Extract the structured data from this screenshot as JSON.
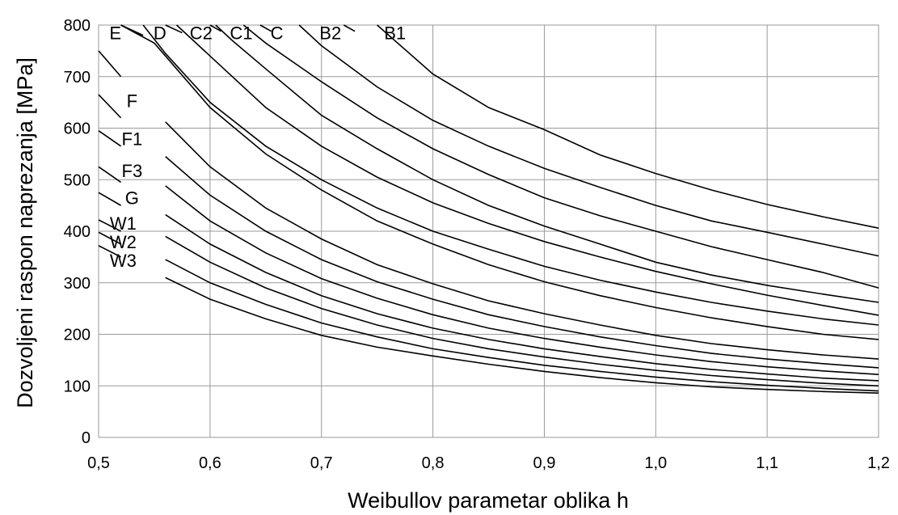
{
  "chart_data": {
    "type": "line",
    "title": "",
    "xlabel": "Weibullov parametar oblika h",
    "ylabel": "Dozvoljeni raspon naprezanja  [MPa]",
    "xlim": [
      0.5,
      1.2
    ],
    "ylim": [
      0,
      800
    ],
    "grid": true,
    "legend": "labels placed at left end of curves",
    "x_ticks": [
      {
        "value": 0.5,
        "label": "0,5"
      },
      {
        "value": 0.6,
        "label": "0,6"
      },
      {
        "value": 0.7,
        "label": "0,7"
      },
      {
        "value": 0.8,
        "label": "0,8"
      },
      {
        "value": 0.9,
        "label": "0,9"
      },
      {
        "value": 1.0,
        "label": "1,0"
      },
      {
        "value": 1.1,
        "label": "1,1"
      },
      {
        "value": 1.2,
        "label": "1,2"
      }
    ],
    "y_ticks": [
      {
        "value": 0,
        "label": "0"
      },
      {
        "value": 100,
        "label": "100"
      },
      {
        "value": 200,
        "label": "200"
      },
      {
        "value": 300,
        "label": "300"
      },
      {
        "value": 400,
        "label": "400"
      },
      {
        "value": 500,
        "label": "500"
      },
      {
        "value": 600,
        "label": "600"
      },
      {
        "value": 700,
        "label": "700"
      },
      {
        "value": 800,
        "label": "800"
      }
    ],
    "series": [
      {
        "name": "B1",
        "label_at": [
          0.766,
          782
        ],
        "x": [
          0.75,
          0.8,
          0.85,
          0.9,
          0.95,
          1.0,
          1.05,
          1.1,
          1.15,
          1.2
        ],
        "y": [
          800,
          705,
          640,
          597,
          548,
          512,
          480,
          452,
          428,
          406
        ]
      },
      {
        "name": "B2",
        "label_at": [
          0.708,
          782
        ],
        "x": [
          0.68,
          0.7,
          0.75,
          0.8,
          0.85,
          0.9,
          0.95,
          1.0,
          1.05,
          1.1,
          1.15,
          1.2
        ],
        "y": [
          800,
          760,
          680,
          615,
          565,
          522,
          485,
          450,
          420,
          398,
          375,
          352
        ]
      },
      {
        "name": "C",
        "label_at": [
          0.66,
          782
        ],
        "x": [
          0.63,
          0.65,
          0.7,
          0.75,
          0.8,
          0.85,
          0.9,
          0.95,
          1.0,
          1.05,
          1.1,
          1.15,
          1.2
        ],
        "y": [
          800,
          765,
          690,
          620,
          560,
          510,
          465,
          430,
          400,
          370,
          345,
          320,
          290
        ]
      },
      {
        "name": "C1",
        "label_at": [
          0.628,
          782
        ],
        "x": [
          0.605,
          0.62,
          0.65,
          0.7,
          0.75,
          0.8,
          0.85,
          0.9,
          0.95,
          1.0,
          1.05,
          1.1,
          1.15,
          1.2
        ],
        "y": [
          800,
          770,
          715,
          625,
          560,
          500,
          450,
          410,
          375,
          340,
          315,
          295,
          278,
          262
        ]
      },
      {
        "name": "C2",
        "label_at": [
          0.592,
          782
        ],
        "x": [
          0.57,
          0.6,
          0.65,
          0.7,
          0.75,
          0.8,
          0.85,
          0.9,
          0.95,
          1.0,
          1.05,
          1.1,
          1.15,
          1.2
        ],
        "y": [
          800,
          740,
          640,
          565,
          505,
          455,
          415,
          380,
          350,
          322,
          298,
          276,
          256,
          237
        ]
      },
      {
        "name": "D",
        "label_at": [
          0.555,
          782
        ],
        "x": [
          0.54,
          0.56,
          0.6,
          0.65,
          0.7,
          0.75,
          0.8,
          0.85,
          0.9,
          0.95,
          1.0,
          1.05,
          1.1,
          1.15,
          1.2
        ],
        "y": [
          800,
          745,
          650,
          565,
          500,
          445,
          400,
          365,
          332,
          305,
          282,
          262,
          245,
          230,
          218
        ]
      },
      {
        "name": "E",
        "label_at": [
          0.515,
          782
        ],
        "x": [
          0.52,
          0.55,
          0.6,
          0.65,
          0.7,
          0.75,
          0.8,
          0.85,
          0.9,
          0.95,
          1.0,
          1.05,
          1.1,
          1.15,
          1.2
        ],
        "y": [
          800,
          765,
          640,
          550,
          480,
          420,
          375,
          335,
          302,
          275,
          252,
          232,
          215,
          200,
          190
        ]
      },
      {
        "name": "F",
        "label_at": [
          0.53,
          650
        ],
        "x": [
          0.56,
          0.6,
          0.65,
          0.7,
          0.75,
          0.8,
          0.85,
          0.9,
          0.95,
          1.0,
          1.05,
          1.1,
          1.15,
          1.2
        ],
        "y": [
          612,
          525,
          445,
          385,
          335,
          298,
          265,
          240,
          218,
          198,
          182,
          170,
          160,
          152
        ]
      },
      {
        "name": "F1",
        "label_at": [
          0.53,
          576
        ],
        "x": [
          0.56,
          0.6,
          0.65,
          0.7,
          0.75,
          0.8,
          0.85,
          0.9,
          0.95,
          1.0,
          1.05,
          1.1,
          1.15,
          1.2
        ],
        "y": [
          545,
          470,
          400,
          345,
          302,
          268,
          238,
          215,
          195,
          178,
          163,
          152,
          143,
          135
        ]
      },
      {
        "name": "F3",
        "label_at": [
          0.53,
          514
        ],
        "x": [
          0.56,
          0.6,
          0.65,
          0.7,
          0.75,
          0.8,
          0.85,
          0.9,
          0.95,
          1.0,
          1.05,
          1.1,
          1.15,
          1.2
        ],
        "y": [
          488,
          420,
          358,
          308,
          270,
          238,
          212,
          192,
          175,
          160,
          147,
          137,
          129,
          122
        ]
      },
      {
        "name": "G",
        "label_at": [
          0.53,
          462
        ],
        "x": [
          0.56,
          0.6,
          0.65,
          0.7,
          0.75,
          0.8,
          0.85,
          0.9,
          0.95,
          1.0,
          1.05,
          1.1,
          1.15,
          1.2
        ],
        "y": [
          432,
          375,
          320,
          275,
          240,
          212,
          190,
          172,
          157,
          143,
          132,
          123,
          115,
          110
        ]
      },
      {
        "name": "W1",
        "label_at": [
          0.522,
          412
        ],
        "x": [
          0.56,
          0.6,
          0.65,
          0.7,
          0.75,
          0.8,
          0.85,
          0.9,
          0.95,
          1.0,
          1.05,
          1.1,
          1.15,
          1.2
        ],
        "y": [
          390,
          340,
          290,
          250,
          218,
          192,
          172,
          156,
          142,
          130,
          120,
          112,
          105,
          100
        ]
      },
      {
        "name": "W2",
        "label_at": [
          0.522,
          376
        ],
        "x": [
          0.56,
          0.6,
          0.65,
          0.7,
          0.75,
          0.8,
          0.85,
          0.9,
          0.95,
          1.0,
          1.05,
          1.1,
          1.15,
          1.2
        ],
        "y": [
          345,
          300,
          258,
          222,
          195,
          172,
          155,
          140,
          128,
          117,
          108,
          101,
          95,
          90
        ]
      },
      {
        "name": "W3",
        "label_at": [
          0.522,
          340
        ],
        "x": [
          0.56,
          0.6,
          0.65,
          0.7,
          0.75,
          0.8,
          0.85,
          0.9,
          0.95,
          1.0,
          1.05,
          1.1,
          1.15,
          1.2
        ],
        "y": [
          310,
          268,
          230,
          198,
          175,
          158,
          142,
          128,
          116,
          106,
          98,
          93,
          89,
          86
        ]
      }
    ],
    "left_stubs": [
      {
        "x": [
          0.5,
          0.52
        ],
        "y": [
          750,
          700
        ]
      },
      {
        "x": [
          0.5,
          0.52
        ],
        "y": [
          665,
          620
        ]
      },
      {
        "x": [
          0.5,
          0.52
        ],
        "y": [
          595,
          565
        ]
      },
      {
        "x": [
          0.5,
          0.52
        ],
        "y": [
          525,
          495
        ]
      },
      {
        "x": [
          0.5,
          0.52
        ],
        "y": [
          475,
          450
        ]
      },
      {
        "x": [
          0.5,
          0.52
        ],
        "y": [
          422,
          400
        ]
      },
      {
        "x": [
          0.5,
          0.52
        ],
        "y": [
          398,
          375
        ]
      },
      {
        "x": [
          0.5,
          0.52
        ],
        "y": [
          372,
          350
        ]
      },
      {
        "x": [
          0.52,
          0.54
        ],
        "y": [
          800,
          780
        ]
      },
      {
        "x": [
          0.56,
          0.575
        ],
        "y": [
          800,
          785
        ]
      },
      {
        "x": [
          0.6,
          0.61
        ],
        "y": [
          800,
          788
        ]
      },
      {
        "x": [
          0.645,
          0.655
        ],
        "y": [
          800,
          788
        ]
      },
      {
        "x": [
          0.72,
          0.73
        ],
        "y": [
          800,
          788
        ]
      }
    ]
  }
}
